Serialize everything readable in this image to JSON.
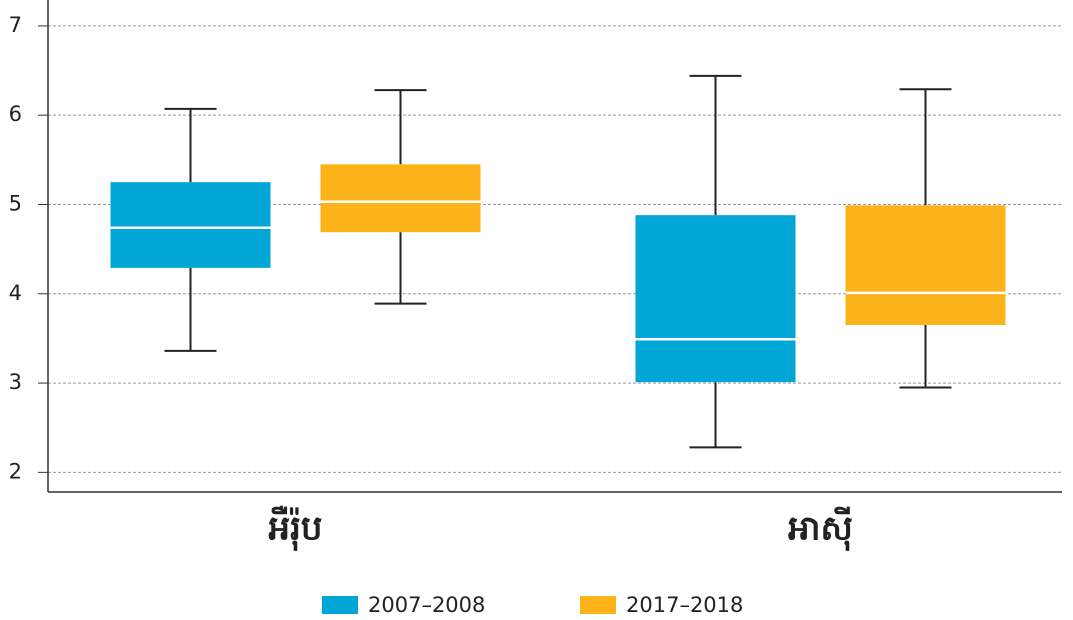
{
  "chart_data": {
    "type": "box",
    "categories": [
      "អឺរ៉ុប",
      "អាស៊ី"
    ],
    "series": [
      {
        "name": "2007–2008",
        "color": "#00a6d6",
        "values": [
          {
            "min": 3.36,
            "q1": 4.29,
            "median": 4.74,
            "q3": 5.25,
            "max": 6.07
          },
          {
            "min": 2.28,
            "q1": 3.01,
            "median": 3.49,
            "q3": 4.88,
            "max": 6.44
          }
        ]
      },
      {
        "name": "2017–2018",
        "color": "#fbb319",
        "values": [
          {
            "min": 3.89,
            "q1": 4.69,
            "median": 5.03,
            "q3": 5.45,
            "max": 6.28
          },
          {
            "min": 2.95,
            "q1": 3.65,
            "median": 4.01,
            "q3": 4.99,
            "max": 6.29
          }
        ]
      }
    ],
    "ylim": [
      1.78,
      7.29
    ],
    "yticks": [
      2,
      3,
      4,
      5,
      6,
      7
    ],
    "grid": true,
    "legend": "bottom"
  }
}
